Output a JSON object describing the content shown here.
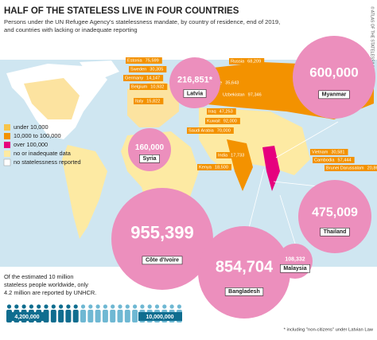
{
  "header": {
    "title": "HALF OF THE STATELESS LIVE IN FOUR COUNTRIES",
    "subtitle_lines": [
      "Persons under the UN Refugee Agency's statelessness mandate, by country of residence, end of 2019,",
      "and countries with lacking or inadequate reporting"
    ],
    "credit": "© ATLAS OF THE STATELESS/LIMBURG"
  },
  "legend": [
    "under 10,000",
    "10,000 to 100,000",
    "over 100,000",
    "no or inadequate data",
    "no statelessness reported"
  ],
  "countries": [
    {
      "name": "Estonia",
      "value": "75,599"
    },
    {
      "name": "Sweden",
      "value": "30,305"
    },
    {
      "name": "Germany",
      "value": "14,147"
    },
    {
      "name": "Belgium",
      "value": "10,932"
    },
    {
      "name": "Italy",
      "value": "15,822"
    },
    {
      "name": "Russia",
      "value": "68,209"
    },
    {
      "name": "Ukraine",
      "value": "35,643"
    },
    {
      "name": "Uzbekistan",
      "value": "97,346"
    },
    {
      "name": "Iraq",
      "value": "47,253"
    },
    {
      "name": "Kuwait",
      "value": "92,000"
    },
    {
      "name": "Saudi Arabia",
      "value": "70,000"
    },
    {
      "name": "India",
      "value": "17,733"
    },
    {
      "name": "Kenya",
      "value": "18,500"
    },
    {
      "name": "Vietnam",
      "value": "30,581"
    },
    {
      "name": "Cambodia",
      "value": "57,444"
    },
    {
      "name": "Brunei Darussalam",
      "value": "20,863"
    }
  ],
  "highlights": [
    {
      "name": "Latvia",
      "value": "216,851*"
    },
    {
      "name": "Myanmar",
      "value": "600,000"
    },
    {
      "name": "Syria",
      "value": "160,000"
    },
    {
      "name": "Côte d'Ivoire",
      "value": "955,399"
    },
    {
      "name": "Thailand",
      "value": "475,009"
    },
    {
      "name": "Bangladesh",
      "value": "854,704"
    },
    {
      "name": "Malaysia",
      "value": "108,332"
    }
  ],
  "note": {
    "lines": [
      "Of the estimated 10 million",
      "stateless people worldwide, only",
      "4.2 million are reported by UNHCR."
    ],
    "reported": "4,200,000",
    "estimated": "10,000,000"
  },
  "footnote": "* including \"non-citizens\" under Latvian Law"
}
